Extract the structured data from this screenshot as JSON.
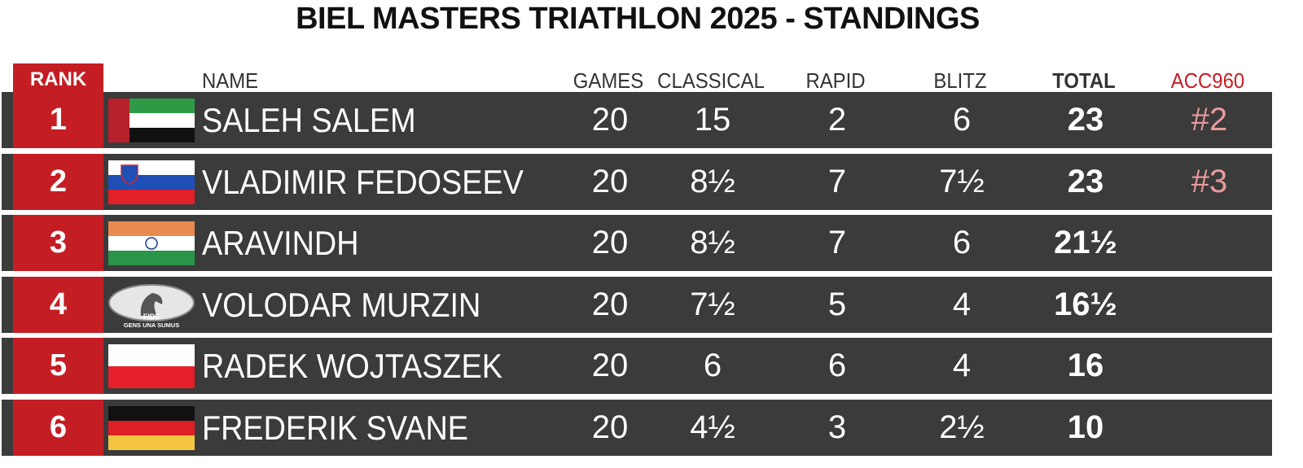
{
  "title": "BIEL MASTERS TRIATHLON 2025 - STANDINGS",
  "table": {
    "headers": {
      "rank": "RANK",
      "name": "NAME",
      "games": "GAMES",
      "classical": "CLASSICAL",
      "rapid": "RAPID",
      "blitz": "BLITZ",
      "total": "TOTAL",
      "acc960": "ACC960"
    },
    "rows": [
      {
        "rank": 1,
        "name": "SALEH SALEM",
        "games": 20,
        "classical": 15,
        "rapid": 2,
        "blitz": 6,
        "total": 23,
        "acc960": "#2"
      },
      {
        "rank": 2,
        "name": "VLADIMIR FEDOSEEV",
        "games": 20,
        "classical": "8½",
        "rapid": 7,
        "blitz": "7½",
        "total": 23,
        "acc960": "#3"
      },
      {
        "rank": 3,
        "name": "ARAVINDH",
        "games": 20,
        "classical": "8½",
        "rapid": 7,
        "blitz": 6,
        "total": "21½"
      },
      {
        "rank": 4,
        "name": "VOLODAR MURZIN",
        "games": 20,
        "classical": "7½",
        "rapid": 5,
        "blitz": 4,
        "total": "16½",
        "logo_text": [
          "FIDE",
          "GENS UNA SUMUS"
        ]
      },
      {
        "rank": 5,
        "name": "RADEK WOJTASZEK",
        "games": 20,
        "classical": 6,
        "rapid": 6,
        "blitz": 4,
        "total": 16
      },
      {
        "rank": 6,
        "name": "FREDERIK SVANE",
        "games": 20,
        "classical": "4½",
        "rapid": 3,
        "blitz": "2½",
        "total": 10
      }
    ]
  }
}
